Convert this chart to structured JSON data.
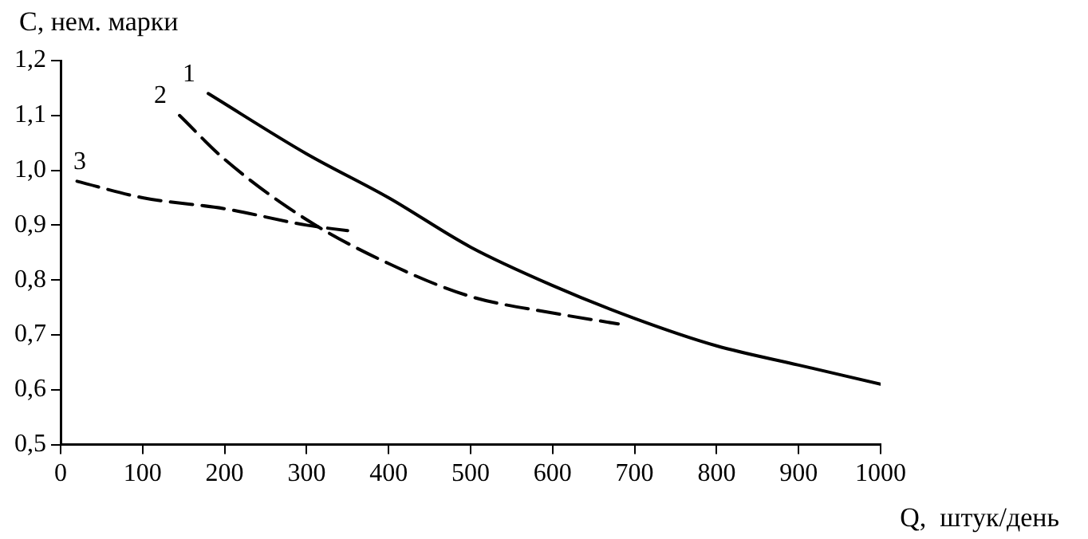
{
  "chart_data": {
    "type": "line",
    "xlabel": "Q,  штук/день",
    "ylabel": "С, нем. марки",
    "xlim": [
      0,
      1000
    ],
    "xticks": [
      0,
      100,
      200,
      300,
      400,
      500,
      600,
      700,
      800,
      900,
      1000
    ],
    "ylim": [
      0.5,
      1.2
    ],
    "yticks": [
      {
        "value": 0.5,
        "label": "0,5"
      },
      {
        "value": 0.6,
        "label": "0,6"
      },
      {
        "value": 0.7,
        "label": "0,7"
      },
      {
        "value": 0.8,
        "label": "0,8"
      },
      {
        "value": 0.9,
        "label": "0,9"
      },
      {
        "value": 1.0,
        "label": "1,0"
      },
      {
        "value": 1.1,
        "label": "1,1"
      },
      {
        "value": 1.2,
        "label": "1,2"
      }
    ],
    "grid": false,
    "legend": false,
    "marker": "none",
    "series": [
      {
        "name": "1",
        "color": "#000000",
        "line_style": "solid",
        "x": [
          180,
          300,
          400,
          500,
          600,
          700,
          800,
          900,
          1000
        ],
        "values": [
          1.14,
          1.03,
          0.95,
          0.86,
          0.79,
          0.73,
          0.68,
          0.645,
          0.61
        ]
      },
      {
        "name": "2",
        "color": "#000000",
        "line_style": "dashed",
        "x": [
          145,
          200,
          300,
          400,
          500,
          600,
          680
        ],
        "values": [
          1.1,
          1.02,
          0.91,
          0.83,
          0.77,
          0.74,
          0.72
        ]
      },
      {
        "name": "3",
        "color": "#000000",
        "line_style": "dashed",
        "x": [
          20,
          100,
          200,
          300,
          350
        ],
        "values": [
          0.98,
          0.95,
          0.93,
          0.9,
          0.89
        ]
      }
    ]
  }
}
